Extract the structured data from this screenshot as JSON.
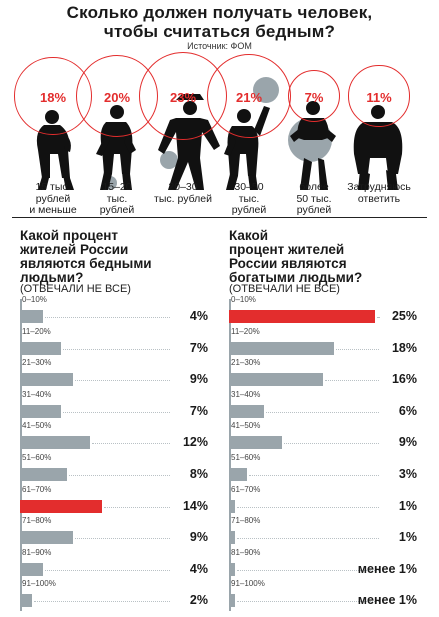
{
  "title_line1": "Сколько должен получать человек,",
  "title_line2": "чтобы считаться бедным?",
  "source": "Источник: ФОМ",
  "income_chart": {
    "type": "bar",
    "categories": [
      [
        "15 тыс.",
        "рублей",
        "и меньше"
      ],
      [
        "15–20",
        "тыс.",
        "рублей"
      ],
      [
        "20–30",
        "тыс. рублей"
      ],
      [
        "30–50",
        "тыс.",
        "рублей"
      ],
      [
        "более",
        "50 тыс.",
        "рублей"
      ],
      [
        "Затрудняюсь",
        "ответить"
      ]
    ],
    "values": [
      18,
      20,
      23,
      21,
      7,
      11
    ],
    "value_labels": [
      "18%",
      "20%",
      "23%",
      "21%",
      "7%",
      "11%"
    ],
    "circle_color": "#e32d2d"
  },
  "chart_data": [
    {
      "type": "bar",
      "orientation": "horizontal",
      "title": [
        "Какой процент",
        "жителей России",
        "являются бедными",
        "людьми?"
      ],
      "note": "(ОТВЕЧАЛИ НЕ ВСЕ)",
      "categories": [
        "0–10%",
        "11–20%",
        "21–30%",
        "31–40%",
        "41–50%",
        "51–60%",
        "61–70%",
        "71–80%",
        "81–90%",
        "91–100%"
      ],
      "values": [
        4,
        7,
        9,
        7,
        12,
        8,
        14,
        9,
        4,
        2
      ],
      "value_labels": [
        "4%",
        "7%",
        "9%",
        "7%",
        "12%",
        "8%",
        "14%",
        "9%",
        "4%",
        "2%"
      ],
      "highlight_index": 6
    },
    {
      "type": "bar",
      "orientation": "horizontal",
      "title": [
        "Какой",
        "процент жителей",
        "России являются",
        "богатыми людьми?"
      ],
      "note": "(ОТВЕЧАЛИ НЕ ВСЕ)",
      "categories": [
        "0–10%",
        "11–20%",
        "21–30%",
        "31–40%",
        "41–50%",
        "51–60%",
        "61–70%",
        "71–80%",
        "81–90%",
        "91–100%"
      ],
      "values": [
        25,
        18,
        16,
        6,
        9,
        3,
        1,
        1,
        1,
        1
      ],
      "value_labels": [
        "25%",
        "18%",
        "16%",
        "6%",
        "9%",
        "3%",
        "1%",
        "1%",
        "менее 1%",
        "менее 1%"
      ],
      "highlight_index": 0
    }
  ],
  "colors": {
    "accent": "#e32d2d",
    "bar": "#9aa5ab",
    "text": "#1a1a1a"
  }
}
